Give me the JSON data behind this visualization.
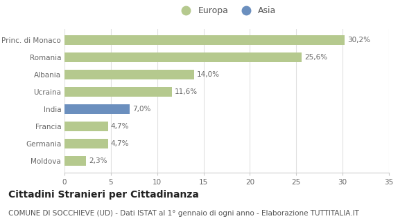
{
  "categories": [
    "Princ. di Monaco",
    "Romania",
    "Albania",
    "Ucraina",
    "India",
    "Francia",
    "Germania",
    "Moldova"
  ],
  "values": [
    30.2,
    25.6,
    14.0,
    11.6,
    7.0,
    4.7,
    4.7,
    2.3
  ],
  "labels": [
    "30,2%",
    "25,6%",
    "14,0%",
    "11,6%",
    "7,0%",
    "4,7%",
    "4,7%",
    "2,3%"
  ],
  "bar_colors": [
    "#b5c98e",
    "#b5c98e",
    "#b5c98e",
    "#b5c98e",
    "#6b8fbe",
    "#b5c98e",
    "#b5c98e",
    "#b5c98e"
  ],
  "europa_color": "#b5c98e",
  "asia_color": "#6b8fbe",
  "xlim": [
    0,
    35
  ],
  "xticks": [
    0,
    5,
    10,
    15,
    20,
    25,
    30,
    35
  ],
  "title": "Cittadini Stranieri per Cittadinanza",
  "subtitle": "COMUNE DI SOCCHIEVE (UD) - Dati ISTAT al 1° gennaio di ogni anno - Elaborazione TUTTITALIA.IT",
  "title_fontsize": 10,
  "subtitle_fontsize": 7.5,
  "legend_europa": "Europa",
  "legend_asia": "Asia",
  "background_color": "#ffffff",
  "bar_height": 0.55,
  "label_fontsize": 7.5,
  "tick_fontsize": 7.5
}
